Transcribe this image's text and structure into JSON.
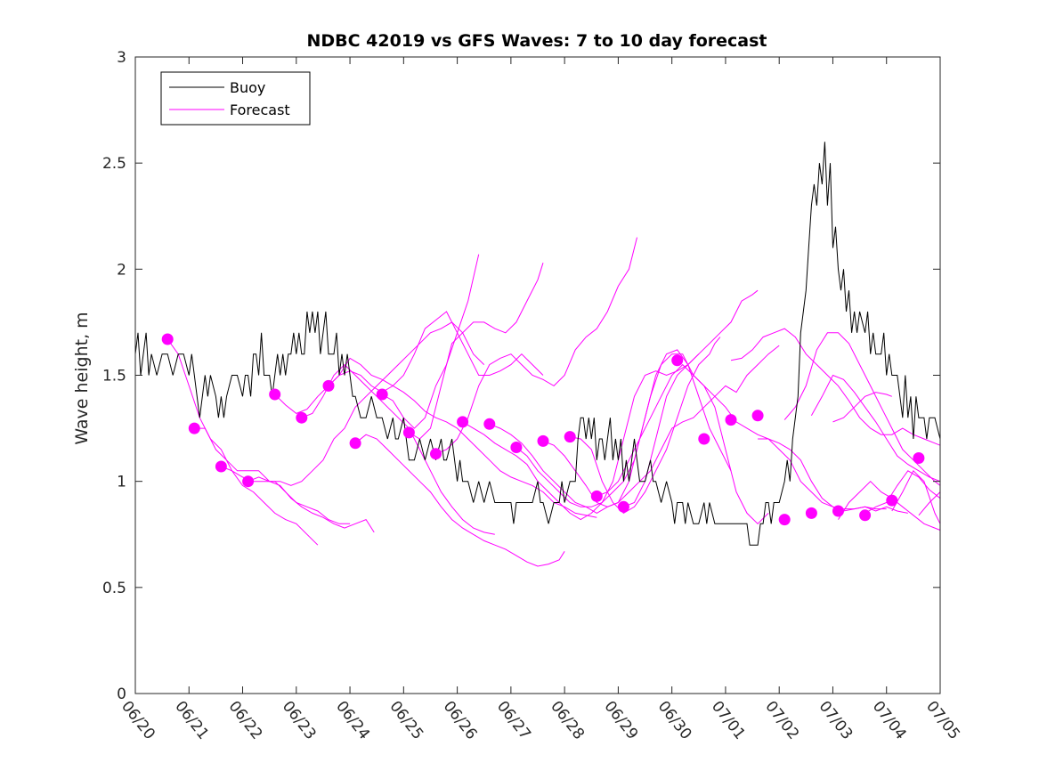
{
  "chart_data": {
    "type": "line",
    "title": "NDBC 42019 vs GFS Waves: 7 to 10 day forecast",
    "xlabel": "",
    "ylabel": "Wave height, m",
    "xlim": [
      0,
      15
    ],
    "ylim": [
      0,
      3
    ],
    "x_tick_labels": [
      "06/20",
      "06/21",
      "06/22",
      "06/23",
      "06/24",
      "06/25",
      "06/26",
      "06/27",
      "06/28",
      "06/29",
      "06/30",
      "07/01",
      "07/02",
      "07/03",
      "07/04",
      "07/05"
    ],
    "y_ticks": [
      0,
      0.5,
      1,
      1.5,
      2,
      2.5,
      3
    ],
    "y_tick_labels": [
      "0",
      "0.5",
      "1",
      "1.5",
      "2",
      "2.5",
      "3"
    ],
    "x_units": "days since 06/20",
    "legend": {
      "position": "top-left",
      "entries": [
        {
          "label": "Buoy",
          "color": "#000000"
        },
        {
          "label": "Forecast",
          "color": "#ff00ff"
        }
      ]
    },
    "colors": {
      "buoy": "#000000",
      "forecast": "#ff00ff"
    },
    "series": [
      {
        "name": "Buoy",
        "points": [
          [
            0.0,
            1.6
          ],
          [
            0.05,
            1.7
          ],
          [
            0.1,
            1.5
          ],
          [
            0.15,
            1.6
          ],
          [
            0.2,
            1.7
          ],
          [
            0.25,
            1.5
          ],
          [
            0.3,
            1.6
          ],
          [
            0.4,
            1.5
          ],
          [
            0.5,
            1.6
          ],
          [
            0.6,
            1.6
          ],
          [
            0.7,
            1.5
          ],
          [
            0.8,
            1.6
          ],
          [
            0.9,
            1.6
          ],
          [
            1.0,
            1.5
          ],
          [
            1.05,
            1.6
          ],
          [
            1.15,
            1.4
          ],
          [
            1.2,
            1.3
          ],
          [
            1.25,
            1.4
          ],
          [
            1.3,
            1.5
          ],
          [
            1.35,
            1.4
          ],
          [
            1.4,
            1.5
          ],
          [
            1.5,
            1.4
          ],
          [
            1.55,
            1.3
          ],
          [
            1.6,
            1.4
          ],
          [
            1.65,
            1.3
          ],
          [
            1.7,
            1.4
          ],
          [
            1.8,
            1.5
          ],
          [
            1.9,
            1.5
          ],
          [
            2.0,
            1.4
          ],
          [
            2.05,
            1.5
          ],
          [
            2.1,
            1.5
          ],
          [
            2.15,
            1.4
          ],
          [
            2.2,
            1.6
          ],
          [
            2.25,
            1.6
          ],
          [
            2.3,
            1.5
          ],
          [
            2.35,
            1.7
          ],
          [
            2.4,
            1.5
          ],
          [
            2.5,
            1.5
          ],
          [
            2.55,
            1.4
          ],
          [
            2.6,
            1.5
          ],
          [
            2.65,
            1.6
          ],
          [
            2.7,
            1.5
          ],
          [
            2.75,
            1.6
          ],
          [
            2.8,
            1.5
          ],
          [
            2.85,
            1.6
          ],
          [
            2.9,
            1.6
          ],
          [
            2.95,
            1.7
          ],
          [
            3.0,
            1.6
          ],
          [
            3.05,
            1.7
          ],
          [
            3.1,
            1.6
          ],
          [
            3.15,
            1.6
          ],
          [
            3.2,
            1.8
          ],
          [
            3.25,
            1.7
          ],
          [
            3.3,
            1.8
          ],
          [
            3.35,
            1.7
          ],
          [
            3.4,
            1.8
          ],
          [
            3.45,
            1.6
          ],
          [
            3.5,
            1.7
          ],
          [
            3.55,
            1.8
          ],
          [
            3.6,
            1.6
          ],
          [
            3.7,
            1.6
          ],
          [
            3.75,
            1.7
          ],
          [
            3.8,
            1.5
          ],
          [
            3.85,
            1.6
          ],
          [
            3.9,
            1.5
          ],
          [
            3.95,
            1.6
          ],
          [
            4.0,
            1.5
          ],
          [
            4.05,
            1.4
          ],
          [
            4.1,
            1.4
          ],
          [
            4.2,
            1.3
          ],
          [
            4.3,
            1.3
          ],
          [
            4.4,
            1.4
          ],
          [
            4.5,
            1.3
          ],
          [
            4.6,
            1.3
          ],
          [
            4.7,
            1.2
          ],
          [
            4.8,
            1.3
          ],
          [
            4.85,
            1.2
          ],
          [
            4.9,
            1.2
          ],
          [
            5.0,
            1.3
          ],
          [
            5.05,
            1.2
          ],
          [
            5.1,
            1.1
          ],
          [
            5.2,
            1.1
          ],
          [
            5.3,
            1.2
          ],
          [
            5.4,
            1.1
          ],
          [
            5.5,
            1.2
          ],
          [
            5.6,
            1.1
          ],
          [
            5.7,
            1.2
          ],
          [
            5.75,
            1.1
          ],
          [
            5.8,
            1.1
          ],
          [
            5.9,
            1.2
          ],
          [
            6.0,
            1.0
          ],
          [
            6.05,
            1.1
          ],
          [
            6.1,
            1.0
          ],
          [
            6.2,
            1.0
          ],
          [
            6.3,
            0.9
          ],
          [
            6.4,
            1.0
          ],
          [
            6.5,
            0.9
          ],
          [
            6.6,
            1.0
          ],
          [
            6.7,
            0.9
          ],
          [
            6.8,
            0.9
          ],
          [
            6.9,
            0.9
          ],
          [
            7.0,
            0.9
          ],
          [
            7.05,
            0.8
          ],
          [
            7.1,
            0.9
          ],
          [
            7.2,
            0.9
          ],
          [
            7.3,
            0.9
          ],
          [
            7.4,
            0.9
          ],
          [
            7.5,
            1.0
          ],
          [
            7.55,
            0.9
          ],
          [
            7.6,
            0.9
          ],
          [
            7.7,
            0.8
          ],
          [
            7.8,
            0.9
          ],
          [
            7.9,
            0.9
          ],
          [
            7.95,
            1.0
          ],
          [
            8.0,
            0.9
          ],
          [
            8.1,
            1.0
          ],
          [
            8.2,
            1.0
          ],
          [
            8.25,
            1.2
          ],
          [
            8.3,
            1.3
          ],
          [
            8.35,
            1.3
          ],
          [
            8.4,
            1.2
          ],
          [
            8.45,
            1.3
          ],
          [
            8.5,
            1.2
          ],
          [
            8.55,
            1.3
          ],
          [
            8.6,
            1.1
          ],
          [
            8.65,
            1.2
          ],
          [
            8.7,
            1.2
          ],
          [
            8.75,
            1.1
          ],
          [
            8.8,
            1.2
          ],
          [
            8.85,
            1.3
          ],
          [
            8.9,
            1.1
          ],
          [
            8.95,
            1.2
          ],
          [
            9.0,
            1.1
          ],
          [
            9.05,
            1.2
          ],
          [
            9.1,
            1.0
          ],
          [
            9.15,
            1.1
          ],
          [
            9.2,
            1.0
          ],
          [
            9.25,
            1.1
          ],
          [
            9.3,
            1.2
          ],
          [
            9.35,
            1.1
          ],
          [
            9.4,
            1.0
          ],
          [
            9.5,
            1.0
          ],
          [
            9.6,
            1.1
          ],
          [
            9.65,
            1.0
          ],
          [
            9.7,
            1.0
          ],
          [
            9.8,
            0.9
          ],
          [
            9.9,
            1.0
          ],
          [
            10.0,
            0.9
          ],
          [
            10.05,
            0.8
          ],
          [
            10.1,
            0.9
          ],
          [
            10.2,
            0.9
          ],
          [
            10.25,
            0.8
          ],
          [
            10.3,
            0.9
          ],
          [
            10.4,
            0.8
          ],
          [
            10.5,
            0.8
          ],
          [
            10.6,
            0.9
          ],
          [
            10.65,
            0.8
          ],
          [
            10.7,
            0.9
          ],
          [
            10.8,
            0.8
          ],
          [
            10.9,
            0.8
          ],
          [
            11.0,
            0.8
          ],
          [
            11.1,
            0.8
          ],
          [
            11.2,
            0.8
          ],
          [
            11.3,
            0.8
          ],
          [
            11.4,
            0.8
          ],
          [
            11.45,
            0.7
          ],
          [
            11.5,
            0.7
          ],
          [
            11.6,
            0.7
          ],
          [
            11.65,
            0.8
          ],
          [
            11.7,
            0.8
          ],
          [
            11.75,
            0.9
          ],
          [
            11.8,
            0.9
          ],
          [
            11.85,
            0.8
          ],
          [
            11.9,
            0.9
          ],
          [
            12.0,
            0.9
          ],
          [
            12.1,
            1.0
          ],
          [
            12.15,
            1.1
          ],
          [
            12.2,
            1.0
          ],
          [
            12.25,
            1.2
          ],
          [
            12.3,
            1.3
          ],
          [
            12.35,
            1.4
          ],
          [
            12.4,
            1.7
          ],
          [
            12.45,
            1.8
          ],
          [
            12.5,
            1.9
          ],
          [
            12.55,
            2.1
          ],
          [
            12.6,
            2.3
          ],
          [
            12.65,
            2.4
          ],
          [
            12.7,
            2.3
          ],
          [
            12.75,
            2.5
          ],
          [
            12.8,
            2.4
          ],
          [
            12.85,
            2.6
          ],
          [
            12.9,
            2.3
          ],
          [
            12.95,
            2.5
          ],
          [
            13.0,
            2.1
          ],
          [
            13.05,
            2.2
          ],
          [
            13.1,
            2.0
          ],
          [
            13.15,
            1.9
          ],
          [
            13.2,
            2.0
          ],
          [
            13.25,
            1.8
          ],
          [
            13.3,
            1.9
          ],
          [
            13.35,
            1.7
          ],
          [
            13.4,
            1.8
          ],
          [
            13.45,
            1.7
          ],
          [
            13.5,
            1.8
          ],
          [
            13.6,
            1.7
          ],
          [
            13.65,
            1.8
          ],
          [
            13.7,
            1.6
          ],
          [
            13.75,
            1.7
          ],
          [
            13.8,
            1.6
          ],
          [
            13.9,
            1.6
          ],
          [
            13.95,
            1.7
          ],
          [
            14.0,
            1.5
          ],
          [
            14.05,
            1.6
          ],
          [
            14.1,
            1.5
          ],
          [
            14.2,
            1.5
          ],
          [
            14.25,
            1.4
          ],
          [
            14.3,
            1.3
          ],
          [
            14.35,
            1.5
          ],
          [
            14.4,
            1.3
          ],
          [
            14.45,
            1.4
          ],
          [
            14.5,
            1.2
          ],
          [
            14.55,
            1.4
          ],
          [
            14.6,
            1.3
          ],
          [
            14.7,
            1.3
          ],
          [
            14.75,
            1.2
          ],
          [
            14.8,
            1.3
          ],
          [
            14.9,
            1.3
          ],
          [
            15.0,
            1.2
          ]
        ]
      }
    ]
  }
}
